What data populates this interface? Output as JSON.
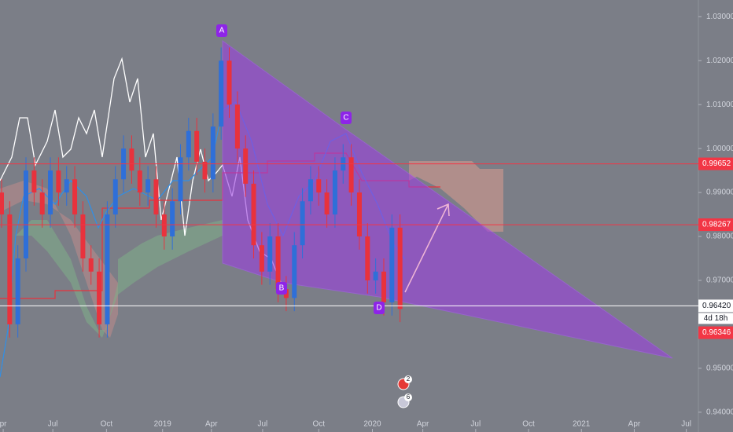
{
  "chart_data": {
    "type": "candlestick",
    "open": [
      0.99,
      0.985,
      0.96,
      0.975,
      0.995,
      0.99,
      0.985,
      0.995,
      0.99,
      0.993,
      0.985,
      0.975,
      0.972,
      0.96,
      0.985,
      0.993,
      1.0,
      0.995,
      0.99,
      0.993,
      0.985,
      0.98,
      0.988,
      0.998,
      1.004,
      0.997,
      0.993,
      1.005,
      1.02,
      1.01,
      1.0,
      0.992,
      0.978,
      0.972,
      0.98,
      0.968,
      0.966,
      0.978,
      0.988,
      0.993,
      0.99,
      0.985,
      0.995,
      0.998,
      0.99,
      0.98,
      0.97,
      0.972,
      0.965,
      0.982
    ],
    "high": [
      0.993,
      0.988,
      0.978,
      0.998,
      0.998,
      0.993,
      0.998,
      0.998,
      0.996,
      0.996,
      0.988,
      0.978,
      0.975,
      0.988,
      0.996,
      1.003,
      1.003,
      0.998,
      0.996,
      0.996,
      0.988,
      0.991,
      1.001,
      1.007,
      1.007,
      1.0,
      1.008,
      1.023,
      1.023,
      1.013,
      1.003,
      0.995,
      0.981,
      0.983,
      0.983,
      0.971,
      0.981,
      0.991,
      0.996,
      0.996,
      0.993,
      0.998,
      1.001,
      1.001,
      0.993,
      0.983,
      0.975,
      0.975,
      0.985,
      0.985
    ],
    "low": [
      0.982,
      0.957,
      0.957,
      0.972,
      0.987,
      0.982,
      0.982,
      0.987,
      0.987,
      0.982,
      0.972,
      0.969,
      0.957,
      0.957,
      0.982,
      0.99,
      0.992,
      0.987,
      0.987,
      0.982,
      0.977,
      0.977,
      0.985,
      0.995,
      0.994,
      0.99,
      0.99,
      1.002,
      1.007,
      0.997,
      0.989,
      0.975,
      0.969,
      0.969,
      0.965,
      0.963,
      0.963,
      0.975,
      0.985,
      0.987,
      0.982,
      0.982,
      0.992,
      0.987,
      0.977,
      0.967,
      0.967,
      0.962,
      0.962,
      0.9605
    ],
    "close": [
      0.985,
      0.96,
      0.975,
      0.995,
      0.99,
      0.985,
      0.995,
      0.99,
      0.993,
      0.985,
      0.975,
      0.972,
      0.96,
      0.985,
      0.993,
      1.0,
      0.995,
      0.99,
      0.993,
      0.985,
      0.98,
      0.988,
      0.998,
      1.004,
      0.997,
      0.993,
      1.005,
      1.02,
      1.01,
      1.0,
      0.992,
      0.978,
      0.972,
      0.98,
      0.968,
      0.966,
      0.978,
      0.988,
      0.993,
      0.99,
      0.985,
      0.995,
      0.998,
      0.99,
      0.98,
      0.97,
      0.972,
      0.965,
      0.982,
      0.9635
    ],
    "up_color": "#2f6fd8",
    "down_color": "#e8323d",
    "ylim": [
      0.9355,
      1.0338
    ],
    "yticks": [
      {
        "value": 1.03,
        "label": "1.03000"
      },
      {
        "value": 1.02,
        "label": "1.02000"
      },
      {
        "value": 1.01,
        "label": "1.01000"
      },
      {
        "value": 1.0,
        "label": "1.00000"
      },
      {
        "value": 0.99,
        "label": "0.99000"
      },
      {
        "value": 0.98,
        "label": "0.98000"
      },
      {
        "value": 0.97,
        "label": "0.97000"
      },
      {
        "value": 0.95,
        "label": "0.95000"
      },
      {
        "value": 0.94,
        "label": "0.94000"
      }
    ],
    "xticks": [
      {
        "value": 0.2,
        "label": "pr"
      },
      {
        "value": 6.3,
        "label": "Jul"
      },
      {
        "value": 12.9,
        "label": "Oct"
      },
      {
        "value": 19.8,
        "label": "2019"
      },
      {
        "value": 25.8,
        "label": "Apr"
      },
      {
        "value": 32.1,
        "label": "Jul"
      },
      {
        "value": 39,
        "label": "Oct"
      },
      {
        "value": 45.6,
        "label": "2020"
      },
      {
        "value": 51.8,
        "label": "Apr"
      },
      {
        "value": 58.3,
        "label": "Jul"
      },
      {
        "value": 64.8,
        "label": "Oct"
      },
      {
        "value": 71.3,
        "label": "2021"
      },
      {
        "value": 77.8,
        "label": "Apr"
      },
      {
        "value": 84.2,
        "label": "Jul"
      }
    ],
    "price_lines": [
      {
        "value": 0.99652,
        "label": "0.99652",
        "color": "#f23645"
      },
      {
        "value": 0.98267,
        "label": "0.98267",
        "color": "#f23645"
      },
      {
        "value": 0.9642,
        "label": "0.96420",
        "color": "#ffffff"
      },
      {
        "value": 0.96346,
        "label": "0.96346",
        "color": "#f23645"
      }
    ],
    "countdown": "4d 18h",
    "pattern_points": [
      "A",
      "B",
      "C",
      "D"
    ],
    "events": [
      "2",
      "6"
    ]
  }
}
